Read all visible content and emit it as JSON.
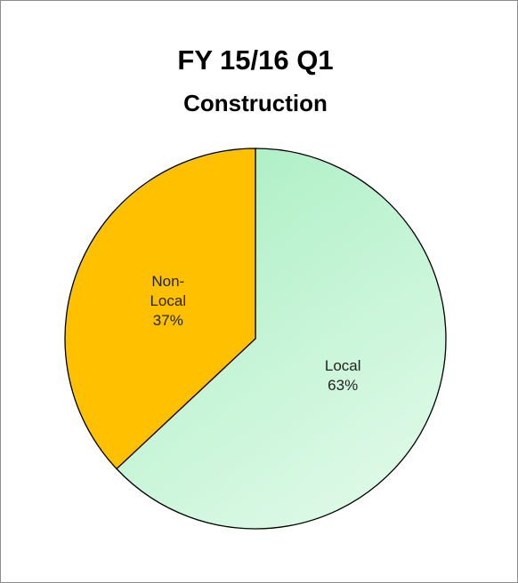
{
  "chart_data": {
    "type": "pie",
    "title": "FY 15/16 Q1",
    "subtitle": "Construction",
    "categories": [
      "Local",
      "Non-Local"
    ],
    "values": [
      63,
      37
    ],
    "value_labels": [
      "63%",
      "37%"
    ],
    "colors": [
      "#b4f2c8",
      "#ffc000"
    ]
  }
}
